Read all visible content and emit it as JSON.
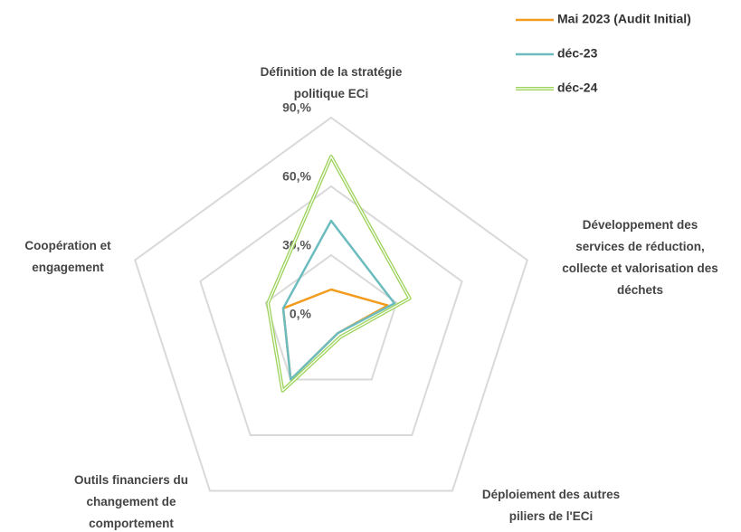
{
  "chart_data": {
    "type": "radar",
    "categories": [
      "Définition de la stratégie\npolitique ECi",
      "Développement des\nservices de réduction,\ncollecte et valorisation des\ndéchets",
      "Déploiement des autres\npiliers de l'ECi",
      "Outils financiers du\nchangement de\ncomportement",
      "Coopération et\nengagement"
    ],
    "series": [
      {
        "name": "Mai 2023 (Audit Initial)",
        "color": "#f29b1d",
        "values": [
          15,
          26,
          5,
          30,
          22
        ]
      },
      {
        "name": "déc-23",
        "color": "#6cbcbf",
        "values": [
          45,
          29,
          5,
          30,
          22
        ]
      },
      {
        "name": "déc-24",
        "color": "#9ed45c",
        "values": [
          73,
          36,
          7,
          36,
          29
        ]
      }
    ],
    "ylim": [
      0,
      90
    ],
    "yticks": [
      {
        "value": 0,
        "label": "0,%"
      },
      {
        "value": 30,
        "label": "30,%"
      },
      {
        "value": 60,
        "label": "60,%"
      },
      {
        "value": 90,
        "label": "90,%"
      }
    ],
    "grid": true,
    "legend": "top-right"
  }
}
